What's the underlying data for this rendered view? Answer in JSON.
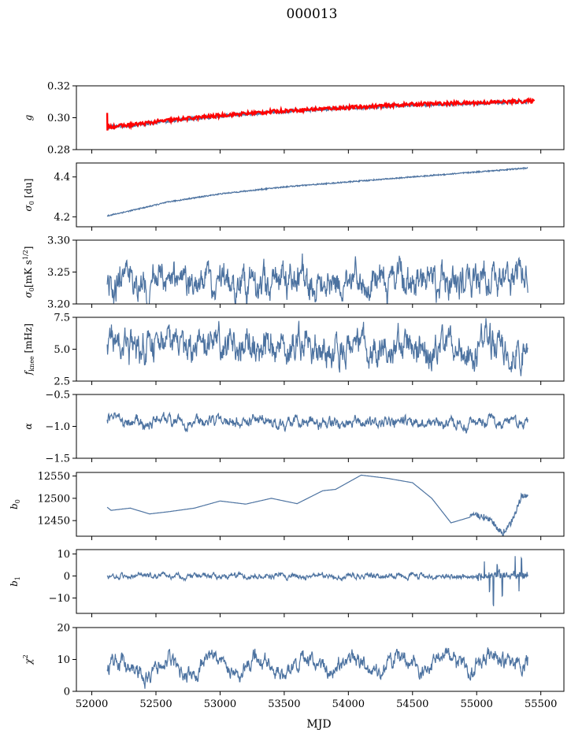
{
  "figure": {
    "title": "000013",
    "xlabel": "MJD",
    "xlim": [
      51880,
      55680
    ],
    "xticks": [
      52000,
      52500,
      53000,
      53500,
      54000,
      54500,
      55000,
      55500
    ],
    "line_color": "#4c72a0",
    "fit_color": "#ff0000",
    "axis_color": "#000000"
  },
  "chart_data": [
    {
      "type": "line",
      "ylabel": "g",
      "ylim": [
        0.28,
        0.32
      ],
      "yticks": [
        0.28,
        0.3,
        0.32
      ],
      "ytick_labels": [
        "0.28",
        "0.30",
        "0.32"
      ],
      "kind": "trend",
      "noise": 0.0012,
      "x": [
        52120,
        52300,
        52600,
        53000,
        53500,
        54000,
        54500,
        55000,
        55400
      ],
      "y": [
        0.294,
        0.295,
        0.298,
        0.301,
        0.304,
        0.306,
        0.308,
        0.309,
        0.31
      ],
      "series": [
        {
          "values": [
            0.294,
            0.295,
            0.298,
            0.301,
            0.304,
            0.306,
            0.308,
            0.309,
            0.31
          ]
        },
        {
          "overlay": "red",
          "x_end": 55450
        }
      ]
    },
    {
      "type": "line",
      "ylabel": "σ0 [du]",
      "ylim": [
        4.15,
        4.47
      ],
      "yticks": [
        4.2,
        4.4
      ],
      "ytick_labels": [
        "4.2",
        "4.4"
      ],
      "kind": "trend",
      "noise": 0.003,
      "x": [
        52120,
        52300,
        52600,
        53000,
        53500,
        54000,
        54500,
        55000,
        55400
      ],
      "y": [
        4.205,
        4.23,
        4.275,
        4.315,
        4.35,
        4.375,
        4.4,
        4.425,
        4.445
      ]
    },
    {
      "type": "line",
      "ylabel": "σ0[mK s1/2]",
      "ylim": [
        3.2,
        3.3
      ],
      "yticks": [
        3.2,
        3.25,
        3.3
      ],
      "ytick_labels": [
        "3.20",
        "3.25",
        "3.30"
      ],
      "kind": "noisy",
      "base": 3.24,
      "amp": 0.01,
      "period": 0,
      "x": [
        52120,
        55400
      ],
      "y": [
        3.23,
        3.24
      ]
    },
    {
      "type": "line",
      "ylabel": "fknee [mHz]",
      "ylim": [
        2.5,
        7.5
      ],
      "yticks": [
        2.5,
        5.0,
        7.5
      ],
      "ytick_labels": [
        "2.5",
        "5.0",
        "7.5"
      ],
      "kind": "noisy",
      "base": 5.2,
      "amp": 0.5,
      "period": 365,
      "x": [
        52120,
        55400
      ],
      "y": [
        5.5,
        4.9
      ]
    },
    {
      "type": "line",
      "ylabel": "α",
      "ylim": [
        -1.5,
        -0.5
      ],
      "yticks": [
        -1.5,
        -1.0,
        -0.5
      ],
      "ytick_labels": [
        "−1.5",
        "−1.0",
        "−0.5"
      ],
      "kind": "noisy",
      "base": -0.92,
      "amp": 0.035,
      "period": 365,
      "x": [
        52120,
        55400
      ],
      "y": [
        -0.92,
        -0.95
      ]
    },
    {
      "type": "line",
      "ylabel": "b0",
      "ylim": [
        12415,
        12558
      ],
      "yticks": [
        12450,
        12500,
        12550
      ],
      "ytick_labels": [
        "12450",
        "12500",
        "12550"
      ],
      "kind": "smooth",
      "x": [
        52120,
        52150,
        52300,
        52450,
        52600,
        52800,
        53000,
        53200,
        53400,
        53600,
        53800,
        53900,
        54100,
        54300,
        54500,
        54650,
        54800,
        55000,
        55100,
        55200,
        55280,
        55350,
        55400
      ],
      "y": [
        12480,
        12473,
        12478,
        12465,
        12470,
        12478,
        12494,
        12487,
        12500,
        12488,
        12517,
        12520,
        12552,
        12545,
        12535,
        12500,
        12445,
        12462,
        12455,
        12420,
        12450,
        12505,
        12505
      ]
    },
    {
      "type": "line",
      "ylabel": "b1",
      "ylim": [
        -17,
        12
      ],
      "yticks": [
        -10,
        0,
        10
      ],
      "ytick_labels": [
        "−10",
        "0",
        "10"
      ],
      "kind": "noisy",
      "base": 0.2,
      "amp": 0.5,
      "period": 0,
      "spikes": [
        [
          55060,
          6.5
        ],
        [
          55100,
          -7
        ],
        [
          55130,
          -14
        ],
        [
          55160,
          5
        ],
        [
          55200,
          -10
        ],
        [
          55300,
          10
        ],
        [
          55330,
          -6
        ],
        [
          55350,
          9
        ]
      ],
      "x": [
        52120,
        55400
      ],
      "y": [
        0.0,
        0.0
      ]
    },
    {
      "type": "line",
      "ylabel": "χ2",
      "ylim": [
        0,
        20
      ],
      "yticks": [
        0,
        10,
        20
      ],
      "ytick_labels": [
        "0",
        "10",
        "20"
      ],
      "kind": "noisy",
      "base": 8.0,
      "amp": 1.0,
      "period": 365,
      "seasonal_amp": 2.5,
      "x": [
        52120,
        55400
      ],
      "y": [
        7.0,
        9.5
      ]
    }
  ]
}
